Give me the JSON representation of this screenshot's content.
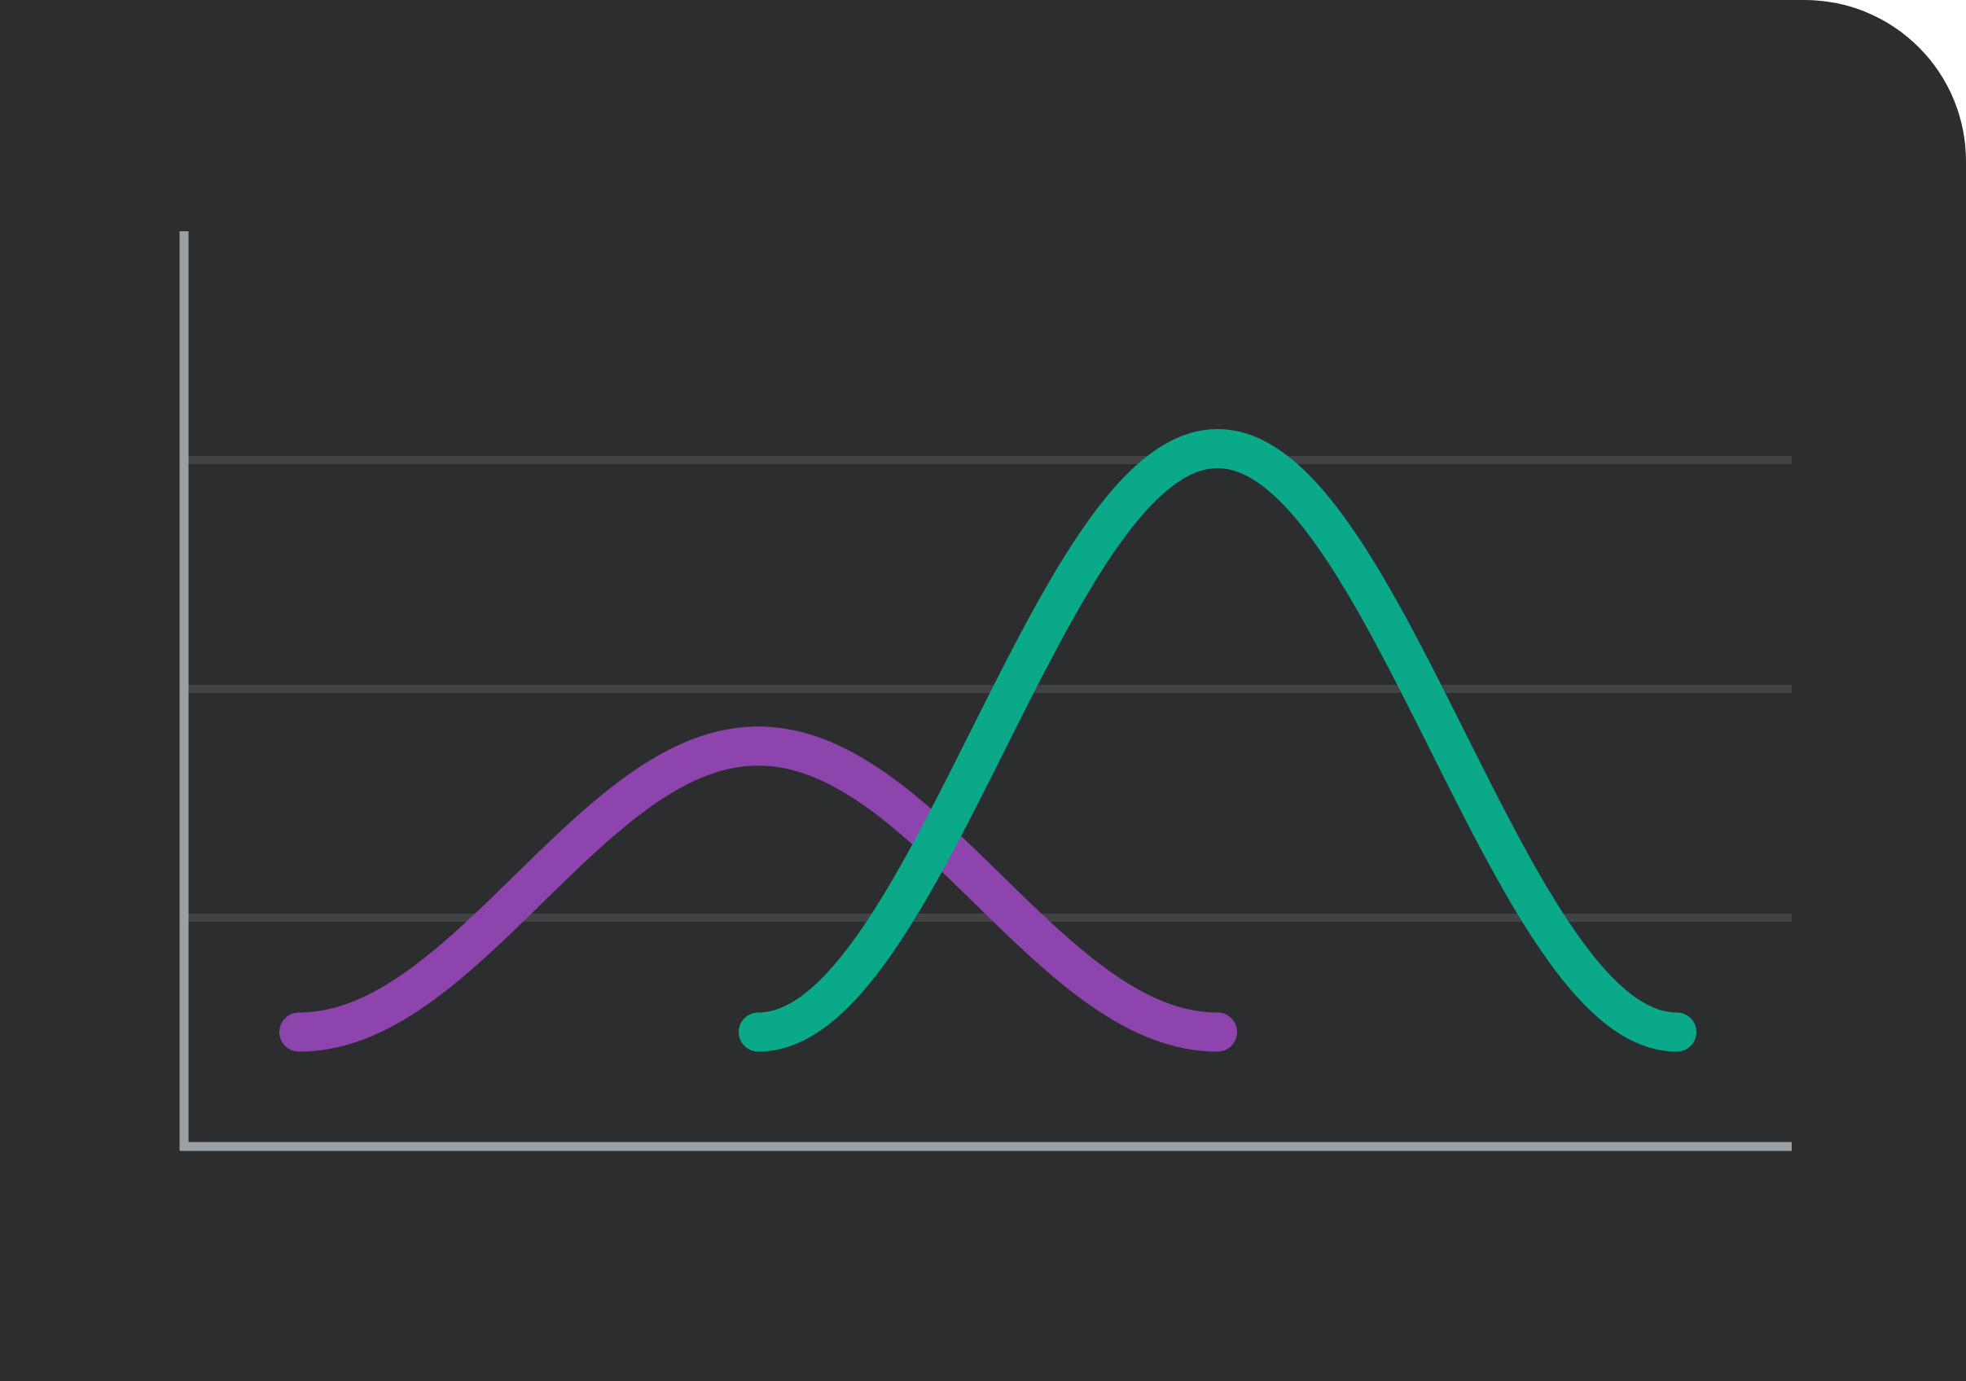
{
  "theme": {
    "background": "#2c2d2f",
    "axis_color": "#9ba0a5",
    "grid_color": "#414345"
  },
  "chart_data": {
    "type": "line",
    "title": "",
    "xlabel": "",
    "ylabel": "",
    "grid": true,
    "xlim": [
      0,
      14
    ],
    "ylim": [
      0,
      8
    ],
    "grid_values": [
      2,
      4,
      6
    ],
    "series": [
      {
        "color": "#8e44ad",
        "shape": "bell",
        "x_start": 1,
        "x_end": 9,
        "baseline": 1,
        "peak_x": 5,
        "peak_y": 3.5
      },
      {
        "color": "#0aa98a",
        "shape": "bell",
        "x_start": 5,
        "x_end": 13,
        "baseline": 1,
        "peak_x": 9,
        "peak_y": 6.1
      }
    ]
  }
}
